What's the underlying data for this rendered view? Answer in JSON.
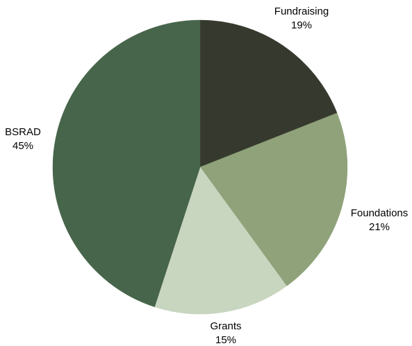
{
  "chart_data": {
    "type": "pie",
    "title": "",
    "slices": [
      {
        "label": "Fundraising",
        "value": 19,
        "value_label": "19%",
        "color": "#363a2e"
      },
      {
        "label": "Foundations",
        "value": 21,
        "value_label": "21%",
        "color": "#8fa27a"
      },
      {
        "label": "Grants",
        "value": 15,
        "value_label": "15%",
        "color": "#c8d5bf"
      },
      {
        "label": "BSRAD",
        "value": 45,
        "value_label": "45%",
        "color": "#47654b"
      }
    ],
    "start_angle": "12 o'clock",
    "direction": "clockwise",
    "legend": "none",
    "labels": "outside"
  }
}
